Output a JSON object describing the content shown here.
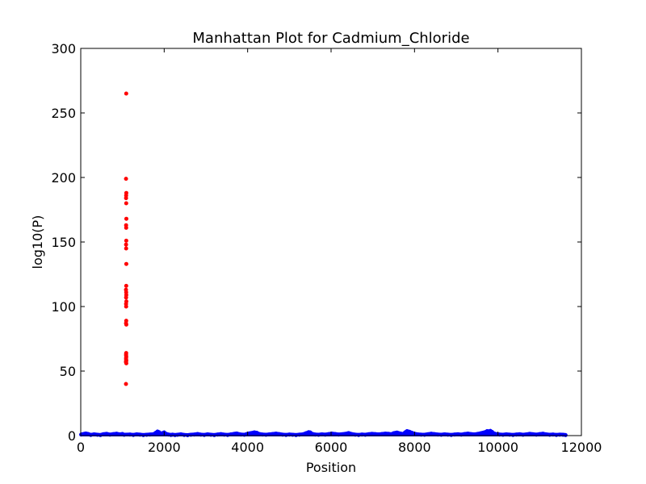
{
  "chart_data": {
    "type": "scatter",
    "title": "Manhattan Plot for Cadmium_Chloride",
    "xlabel": "Position",
    "ylabel": "log10(P)",
    "xlim": [
      0,
      12000
    ],
    "ylim": [
      0,
      300
    ],
    "xticks": [
      0,
      2000,
      4000,
      6000,
      8000,
      10000,
      12000
    ],
    "yticks": [
      0,
      50,
      100,
      150,
      200,
      250,
      300
    ],
    "grid": false,
    "legend": "none",
    "series": [
      {
        "color": "#0000ff",
        "x": [
          10,
          120,
          180,
          240,
          320,
          400,
          470,
          540,
          620,
          700,
          780,
          860,
          940,
          1000,
          1040,
          1180,
          1260,
          1340,
          1420,
          1500,
          1580,
          1660,
          1740,
          1800,
          1840,
          1880,
          1920,
          1960,
          2000,
          2050,
          2100,
          2160,
          2200,
          2260,
          2320,
          2400,
          2480,
          2560,
          2640,
          2720,
          2800,
          2880,
          2960,
          3040,
          3120,
          3200,
          3280,
          3360,
          3440,
          3520,
          3600,
          3680,
          3740,
          3780,
          3840,
          3920,
          4000,
          4080,
          4160,
          4220,
          4280,
          4360,
          4440,
          4520,
          4600,
          4680,
          4760,
          4840,
          4920,
          5000,
          5080,
          5160,
          5240,
          5320,
          5400,
          5460,
          5500,
          5560,
          5620,
          5700,
          5780,
          5860,
          5940,
          6020,
          6100,
          6180,
          6260,
          6340,
          6420,
          6500,
          6580,
          6660,
          6740,
          6820,
          6900,
          6980,
          7060,
          7140,
          7220,
          7300,
          7380,
          7440,
          7500,
          7580,
          7660,
          7720,
          7780,
          7820,
          7880,
          7940,
          8000,
          8080,
          8160,
          8240,
          8320,
          8400,
          8480,
          8560,
          8640,
          8720,
          8800,
          8880,
          8960,
          9040,
          9120,
          9200,
          9280,
          9360,
          9440,
          9520,
          9600,
          9680,
          9740,
          9780,
          9820,
          9860,
          9900,
          9960,
          10040,
          10120,
          10200,
          10280,
          10360,
          10440,
          10520,
          10600,
          10680,
          10760,
          10840,
          10920,
          11000,
          11080,
          11160,
          11240,
          11320,
          11400,
          11480,
          11560,
          11620
        ],
        "y": [
          0.8,
          1.6,
          1.2,
          0.5,
          0.9,
          0.6,
          0.4,
          1.0,
          1.3,
          0.7,
          1.1,
          1.4,
          0.9,
          1.2,
          0.6,
          0.8,
          0.5,
          0.9,
          0.7,
          0.4,
          0.6,
          0.8,
          1.0,
          2.2,
          3.1,
          2.6,
          1.4,
          1.9,
          2.4,
          1.3,
          0.8,
          0.5,
          0.7,
          0.4,
          0.6,
          0.9,
          0.5,
          0.3,
          0.6,
          0.8,
          1.2,
          0.7,
          0.5,
          0.9,
          0.6,
          0.4,
          0.8,
          1.1,
          0.7,
          0.5,
          0.9,
          1.3,
          1.6,
          1.2,
          0.8,
          0.6,
          1.4,
          1.9,
          2.4,
          2.1,
          1.2,
          0.8,
          0.6,
          0.9,
          1.2,
          1.5,
          1.1,
          0.7,
          0.5,
          0.8,
          0.6,
          0.4,
          0.7,
          0.9,
          1.8,
          2.6,
          2.4,
          1.2,
          0.8,
          0.6,
          0.9,
          0.7,
          1.1,
          1.5,
          1.2,
          0.8,
          1.0,
          1.3,
          1.9,
          1.1,
          0.7,
          0.5,
          0.8,
          0.6,
          1.0,
          1.3,
          1.1,
          0.9,
          1.2,
          1.5,
          1.3,
          1.0,
          1.8,
          2.3,
          1.6,
          1.2,
          2.6,
          3.4,
          2.9,
          2.1,
          1.4,
          0.9,
          0.7,
          0.6,
          1.0,
          1.4,
          1.1,
          0.8,
          0.6,
          0.9,
          0.7,
          0.5,
          0.8,
          1.0,
          0.7,
          1.2,
          1.5,
          1.1,
          0.9,
          1.3,
          1.9,
          2.5,
          3.4,
          3.2,
          3.6,
          2.8,
          1.7,
          1.1,
          0.8,
          0.6,
          0.9,
          0.7,
          0.5,
          0.8,
          1.0,
          0.6,
          0.9,
          1.3,
          1.0,
          0.7,
          1.1,
          1.4,
          0.9,
          0.6,
          0.8,
          0.5,
          0.7,
          0.6,
          0.4
        ]
      },
      {
        "color": "#ff0000",
        "x": [
          1090,
          1085,
          1092,
          1088,
          1086,
          1090,
          1093,
          1087,
          1089,
          1091,
          1086,
          1088,
          1092,
          1090,
          1084,
          1089,
          1091,
          1087,
          1093,
          1086,
          1088,
          1090,
          1085,
          1092,
          1089,
          1087,
          1091,
          1086,
          1088,
          1090,
          1083,
          1092,
          1087,
          1089,
          1084
        ],
        "y": [
          265,
          199,
          188,
          186,
          184,
          180,
          168,
          163,
          161,
          151,
          148,
          145,
          133,
          116,
          113,
          111,
          109,
          107,
          104,
          102,
          100,
          89,
          87,
          86,
          64,
          62,
          61,
          60,
          59,
          58,
          57,
          56,
          63,
          58,
          40
        ]
      }
    ]
  }
}
